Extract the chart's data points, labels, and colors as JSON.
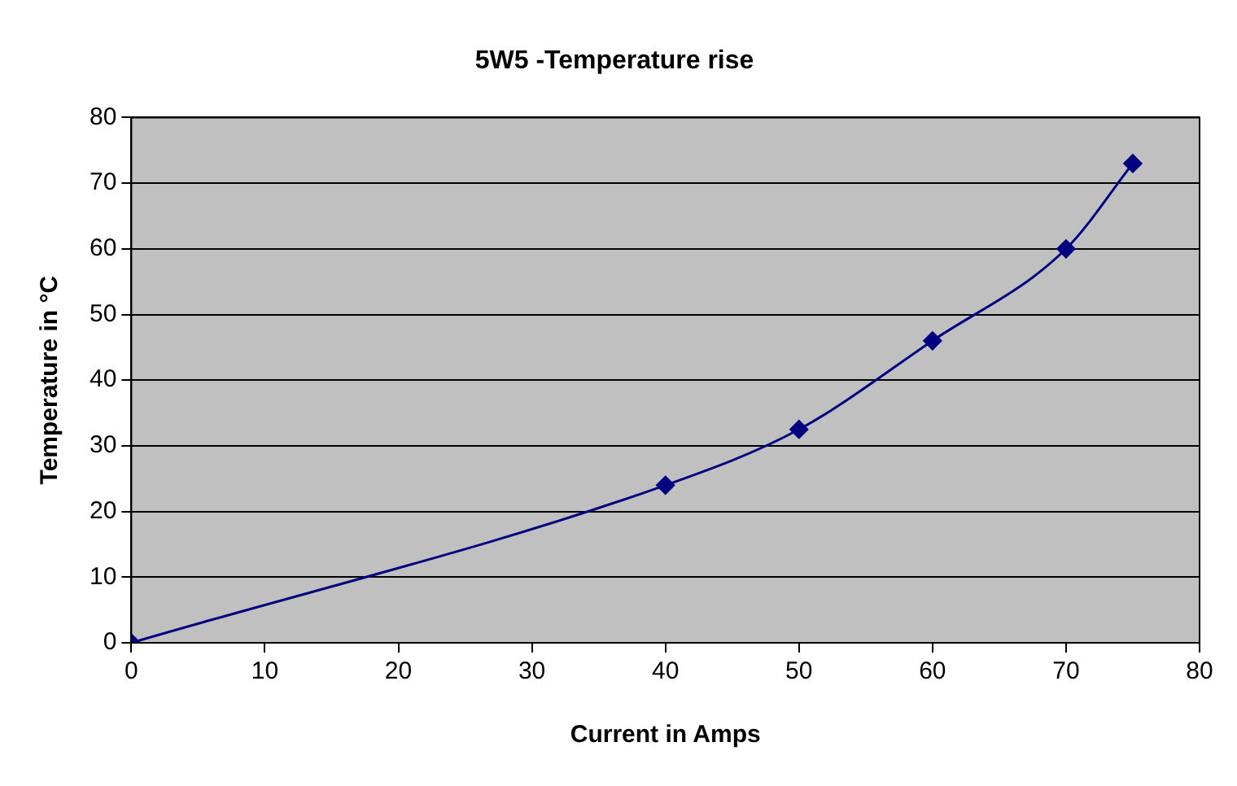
{
  "chart_data": {
    "type": "line",
    "title": "5W5 -Temperature rise",
    "xlabel": "Current in Amps",
    "ylabel": "Temperature in °C",
    "x": [
      0,
      40,
      50,
      60,
      70,
      75
    ],
    "series": [
      {
        "color": "#000080",
        "values": [
          0,
          24,
          32.5,
          46,
          60,
          73
        ]
      }
    ],
    "xlim": [
      0,
      80
    ],
    "xticks": [
      0,
      10,
      20,
      30,
      40,
      50,
      60,
      70,
      80
    ],
    "ylim": [
      0,
      80
    ],
    "yticks": [
      0,
      10,
      20,
      30,
      40,
      50,
      60,
      70,
      80
    ],
    "grid": "y",
    "legend": false,
    "marker": "diamond",
    "line_style": "solid"
  }
}
